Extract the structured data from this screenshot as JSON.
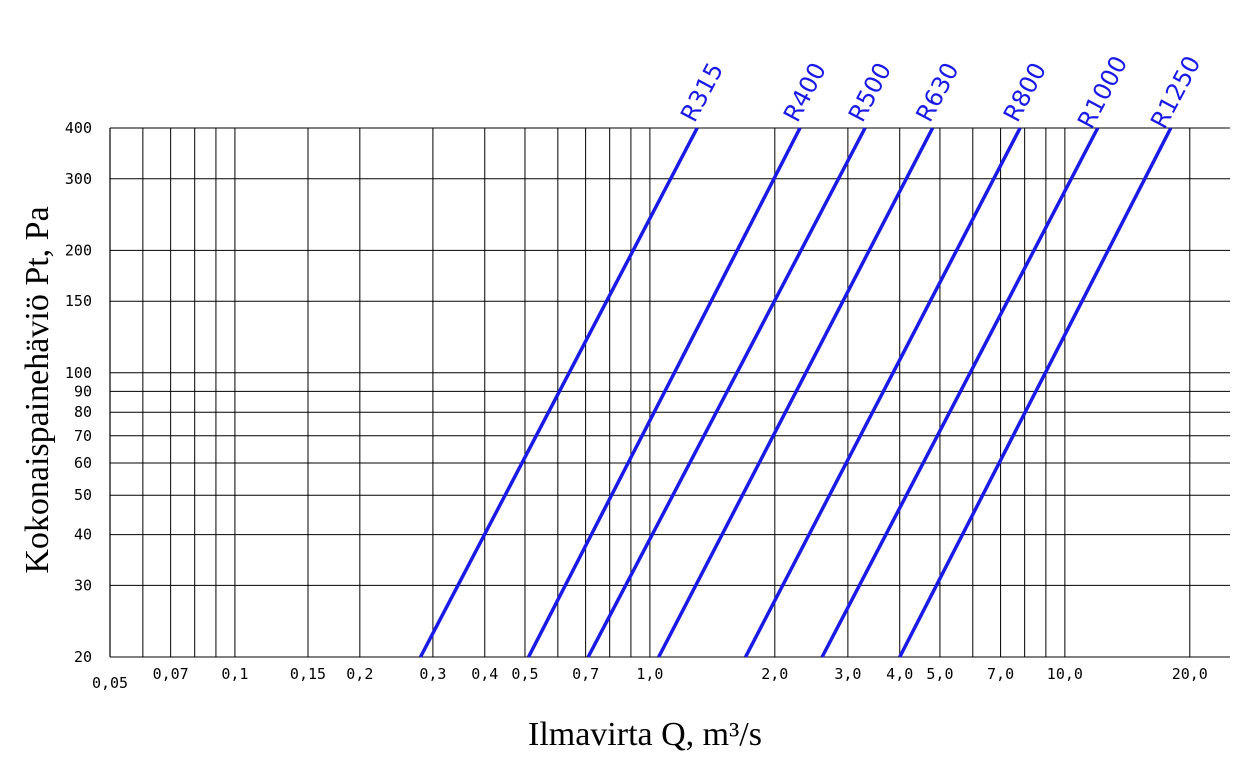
{
  "chart_data": {
    "type": "line",
    "title": "",
    "xlabel": "Ilmavirta Q, m³/s",
    "ylabel": "Kokonaispainehäviö Pt,  Pa",
    "x_scale": "log",
    "y_scale": "log",
    "xlim": [
      0.05,
      25
    ],
    "ylim": [
      20,
      400
    ],
    "grid": true,
    "x_gridlines": [
      0.06,
      0.07,
      0.08,
      0.09,
      0.1,
      0.15,
      0.2,
      0.3,
      0.4,
      0.5,
      0.6,
      0.7,
      0.8,
      0.9,
      1.0,
      2.0,
      3.0,
      4.0,
      5.0,
      6.0,
      7.0,
      8.0,
      9.0,
      10.0,
      20.0
    ],
    "x_ticks": [
      {
        "value": 0.05,
        "label": "0,05"
      },
      {
        "value": 0.07,
        "label": "0,07"
      },
      {
        "value": 0.1,
        "label": "0,1"
      },
      {
        "value": 0.15,
        "label": "0,15"
      },
      {
        "value": 0.2,
        "label": "0,2"
      },
      {
        "value": 0.3,
        "label": "0,3"
      },
      {
        "value": 0.4,
        "label": "0,4"
      },
      {
        "value": 0.5,
        "label": "0,5"
      },
      {
        "value": 0.7,
        "label": "0,7"
      },
      {
        "value": 1.0,
        "label": "1,0"
      },
      {
        "value": 2.0,
        "label": "2,0"
      },
      {
        "value": 3.0,
        "label": "3,0"
      },
      {
        "value": 4.0,
        "label": "4,0"
      },
      {
        "value": 5.0,
        "label": "5,0"
      },
      {
        "value": 7.0,
        "label": "7,0"
      },
      {
        "value": 10.0,
        "label": "10,0"
      },
      {
        "value": 20.0,
        "label": "20,0"
      }
    ],
    "y_ticks": [
      {
        "value": 20,
        "label": "20"
      },
      {
        "value": 30,
        "label": "30"
      },
      {
        "value": 40,
        "label": "40"
      },
      {
        "value": 50,
        "label": "50"
      },
      {
        "value": 60,
        "label": "60"
      },
      {
        "value": 70,
        "label": "70"
      },
      {
        "value": 80,
        "label": "80"
      },
      {
        "value": 90,
        "label": "90"
      },
      {
        "value": 100,
        "label": "100"
      },
      {
        "value": 150,
        "label": "150"
      },
      {
        "value": 200,
        "label": "200"
      },
      {
        "value": 300,
        "label": "300"
      },
      {
        "value": 400,
        "label": "400"
      }
    ],
    "series_color": "#1a1ae6",
    "series": [
      {
        "name": "R315",
        "points": [
          [
            0.28,
            20
          ],
          [
            1.3,
            400
          ]
        ]
      },
      {
        "name": "R400",
        "points": [
          [
            0.51,
            20
          ],
          [
            2.3,
            400
          ]
        ]
      },
      {
        "name": "R500",
        "points": [
          [
            0.71,
            20
          ],
          [
            3.3,
            400
          ]
        ]
      },
      {
        "name": "R630",
        "points": [
          [
            1.05,
            20
          ],
          [
            4.8,
            400
          ]
        ]
      },
      {
        "name": "R800",
        "points": [
          [
            1.7,
            20
          ],
          [
            7.8,
            400
          ]
        ]
      },
      {
        "name": "R1000",
        "points": [
          [
            2.6,
            20
          ],
          [
            12.0,
            400
          ]
        ]
      },
      {
        "name": "R1250",
        "points": [
          [
            4.0,
            20
          ],
          [
            18.0,
            400
          ]
        ]
      }
    ]
  }
}
